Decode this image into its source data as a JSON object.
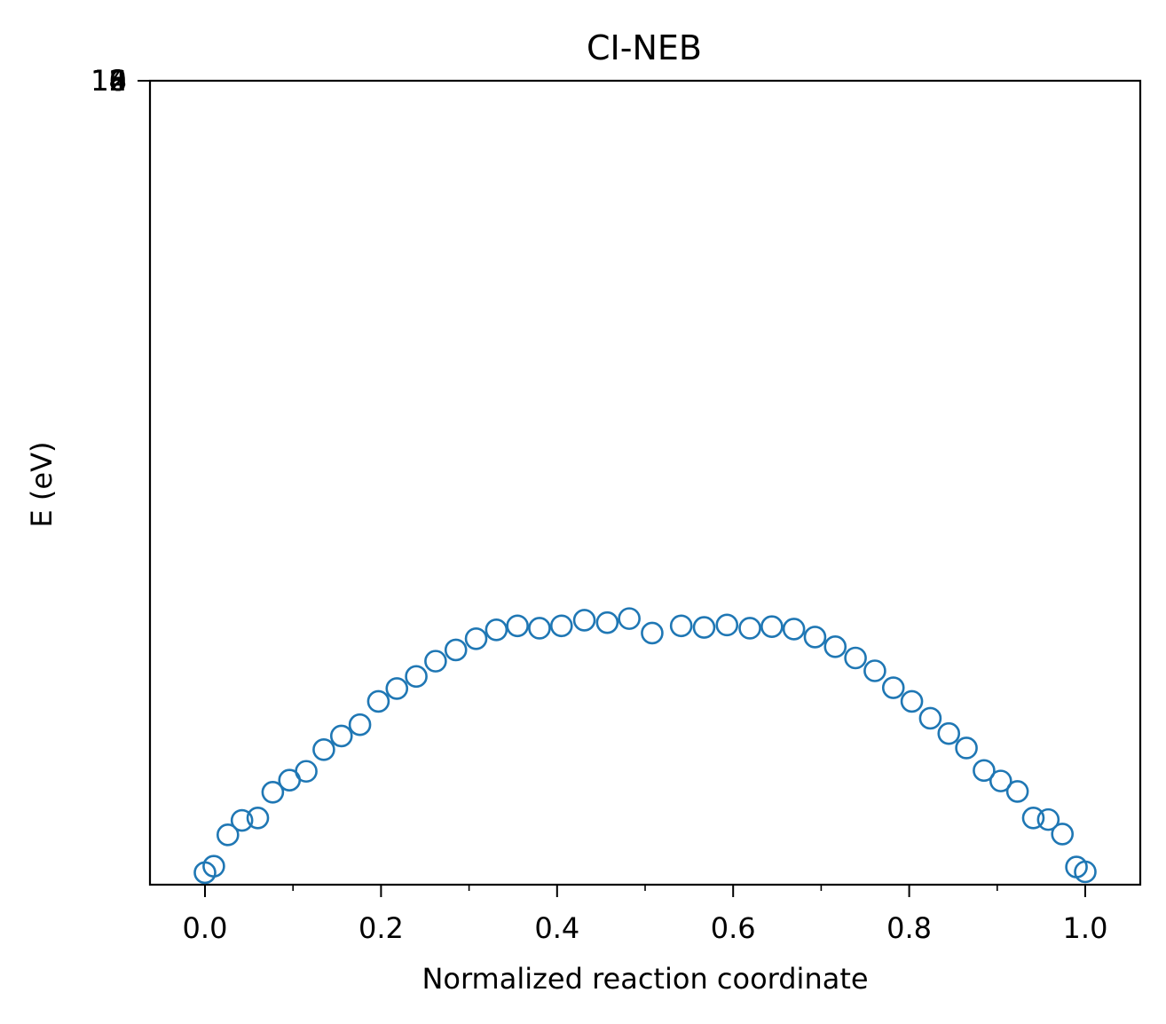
{
  "chart_data": {
    "type": "scatter",
    "title": "CI-NEB",
    "xlabel": "Normalized reaction coordinate",
    "ylabel": "E (eV)",
    "xlim": [
      -0.0625,
      1.0625
    ],
    "x_ticks": [
      "0.0",
      "0.2",
      "0.4",
      "0.6",
      "0.8",
      "1.0"
    ],
    "x_tick_values": [
      0.0,
      0.2,
      0.4,
      0.6,
      0.8,
      1.0
    ],
    "x_minor_ticks": [
      0.1,
      0.3,
      0.5,
      0.7,
      0.9
    ],
    "y_overlapping_tick_labels": [
      "10",
      "12",
      "14",
      "16",
      "18"
    ],
    "marker": "open-circle",
    "marker_color": "#1f77b4",
    "grid": false,
    "series": [
      {
        "x": [
          0.0,
          0.01,
          0.026,
          0.042,
          0.06,
          0.077,
          0.096,
          0.115,
          0.135,
          0.155,
          0.176,
          0.197,
          0.218,
          0.24,
          0.262,
          0.285,
          0.308,
          0.331,
          0.355,
          0.38,
          0.405,
          0.431,
          0.457,
          0.482,
          0.508,
          0.541,
          0.567,
          0.593,
          0.619,
          0.644,
          0.669,
          0.693,
          0.716,
          0.739,
          0.761,
          0.782,
          0.803,
          0.824,
          0.845,
          0.865,
          0.885,
          0.904,
          0.923,
          0.941,
          0.958,
          0.974,
          0.99,
          1.0
        ],
        "y": [
          0.015,
          0.023,
          0.062,
          0.08,
          0.083,
          0.115,
          0.13,
          0.141,
          0.168,
          0.185,
          0.199,
          0.228,
          0.244,
          0.259,
          0.278,
          0.292,
          0.306,
          0.317,
          0.322,
          0.319,
          0.322,
          0.329,
          0.326,
          0.331,
          0.313,
          0.322,
          0.32,
          0.323,
          0.319,
          0.321,
          0.318,
          0.308,
          0.296,
          0.282,
          0.266,
          0.245,
          0.228,
          0.207,
          0.188,
          0.17,
          0.142,
          0.129,
          0.116,
          0.083,
          0.081,
          0.063,
          0.022,
          0.016
        ]
      }
    ]
  }
}
